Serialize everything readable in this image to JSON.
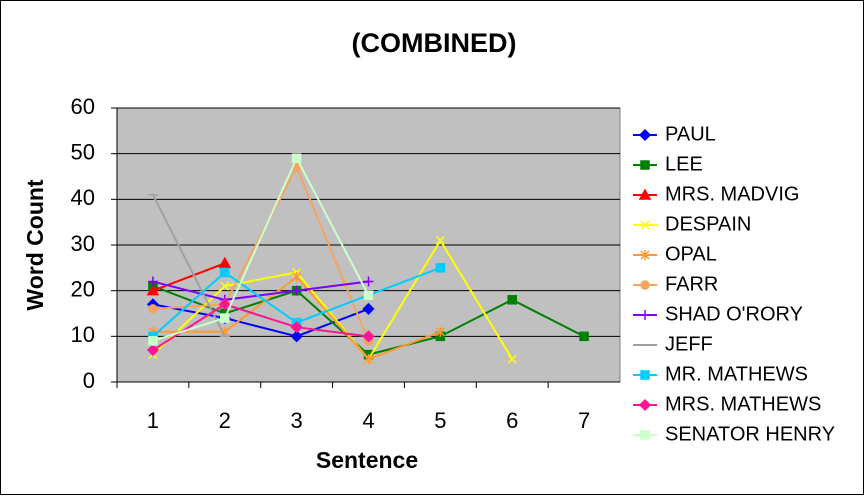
{
  "chart_data": {
    "type": "line",
    "title": "(COMBINED)",
    "x_label": "Sentence",
    "y_label": "Word Count",
    "categories": [
      "1",
      "2",
      "3",
      "4",
      "5",
      "6",
      "7"
    ],
    "ylim": [
      0,
      60
    ],
    "yticks": [
      0,
      10,
      20,
      30,
      40,
      50,
      60
    ],
    "grid": true,
    "legend": "right",
    "series": [
      {
        "name": "PAUL",
        "color": "#0000ff",
        "marker": "diamond",
        "values": [
          17,
          14,
          10,
          16,
          null,
          null,
          null
        ]
      },
      {
        "name": "LEE",
        "color": "#008000",
        "marker": "square",
        "values": [
          21,
          15,
          20,
          6,
          10,
          18,
          10
        ]
      },
      {
        "name": "MRS. MADVIG",
        "color": "#ff0000",
        "marker": "triangle",
        "values": [
          20,
          26,
          null,
          null,
          null,
          null,
          null
        ]
      },
      {
        "name": "DESPAIN",
        "color": "#ffff00",
        "marker": "cross",
        "values": [
          6,
          21,
          24,
          5,
          31,
          5,
          null
        ]
      },
      {
        "name": "OPAL",
        "color": "#ff9933",
        "marker": "star",
        "values": [
          11,
          11,
          23,
          5,
          11,
          null,
          null
        ]
      },
      {
        "name": "FARR",
        "color": "#f4a460",
        "marker": "circle",
        "values": [
          16,
          17,
          47,
          9,
          null,
          null,
          null
        ]
      },
      {
        "name": "SHAD O'RORY",
        "color": "#7f00ff",
        "marker": "plus",
        "values": [
          22,
          18,
          20,
          22,
          null,
          null,
          null
        ]
      },
      {
        "name": "JEFF",
        "color": "#a0a0a0",
        "marker": "line",
        "values": [
          41,
          10,
          null,
          null,
          null,
          null,
          null
        ]
      },
      {
        "name": "MR. MATHEWS",
        "color": "#00ccff",
        "marker": "square",
        "values": [
          10,
          24,
          13,
          19,
          25,
          null,
          null
        ]
      },
      {
        "name": "MRS. MATHEWS",
        "color": "#ff1493",
        "marker": "diamond",
        "values": [
          7,
          17,
          12,
          10,
          null,
          null,
          null
        ]
      },
      {
        "name": "SENATOR HENRY",
        "color": "#ccffcc",
        "marker": "square",
        "values": [
          9,
          14,
          49,
          19,
          null,
          null,
          null
        ]
      }
    ]
  }
}
